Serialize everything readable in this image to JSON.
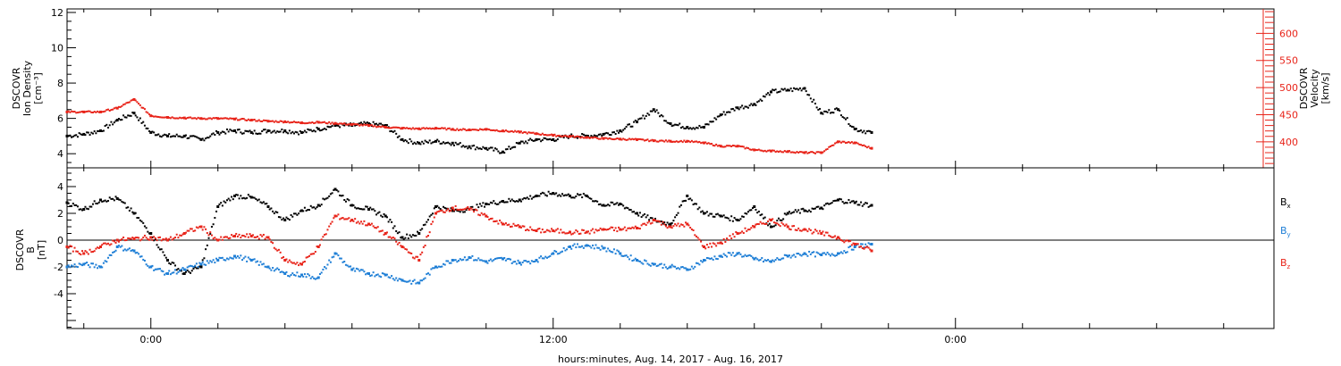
{
  "xaxis": {
    "label": "hours:minutes, Aug. 14, 2017 - Aug. 16, 2017",
    "ticks": [
      {
        "hour": 0,
        "label": "0:00"
      },
      {
        "hour": 12,
        "label": "12:00"
      },
      {
        "hour": 24,
        "label": "0:00"
      }
    ],
    "range_hours": [
      -2.5,
      33.5
    ]
  },
  "colors": {
    "black": "#000000",
    "red": "#e8241a",
    "blue": "#1f7fd6"
  },
  "chart_data": [
    {
      "type": "scatter",
      "xlabel": "",
      "ylabel": [
        "DSCOVR",
        "Ion Density",
        "[cm⁻³]"
      ],
      "ylim": [
        3.2,
        12.2
      ],
      "yticks": [
        4,
        6,
        8,
        10,
        12
      ],
      "y2label": [
        "DSCOVR",
        "Velocity",
        "[km/s]"
      ],
      "y2lim": [
        352,
        645
      ],
      "y2ticks": [
        400,
        450,
        500,
        550,
        600
      ],
      "grid": false,
      "series": [
        {
          "axis": "left",
          "color": "black",
          "x": [
            -2.5,
            -2,
            -1.5,
            -1,
            -0.5,
            0,
            0.5,
            1,
            1.5,
            2,
            2.5,
            3,
            3.5,
            4,
            4.5,
            5,
            5.5,
            6,
            6.5,
            7,
            7.5,
            8,
            8.5,
            9,
            9.5,
            10,
            10.5,
            11,
            11.5,
            12,
            12.5,
            13,
            13.5,
            14,
            14.5,
            15,
            15.5,
            16,
            16.5,
            17,
            17.5,
            18,
            18.5,
            19,
            19.5,
            20,
            20.5,
            21,
            21.5
          ],
          "y": [
            5.0,
            5.1,
            5.3,
            5.9,
            6.3,
            5.2,
            5.0,
            5.0,
            4.8,
            5.2,
            5.3,
            5.2,
            5.3,
            5.3,
            5.2,
            5.4,
            5.6,
            5.6,
            5.7,
            5.6,
            4.8,
            4.6,
            4.7,
            4.6,
            4.4,
            4.3,
            4.1,
            4.6,
            4.8,
            4.8,
            5.0,
            5.0,
            5.1,
            5.3,
            5.8,
            6.5,
            5.7,
            5.5,
            5.5,
            6.2,
            6.6,
            6.8,
            7.5,
            7.6,
            7.7,
            6.3,
            6.5,
            5.4,
            5.2
          ]
        },
        {
          "axis": "right",
          "color": "red",
          "x": [
            -2.5,
            -2,
            -1.5,
            -1,
            -0.5,
            0,
            0.5,
            1,
            1.5,
            2,
            2.5,
            3,
            3.5,
            4,
            4.5,
            5,
            5.5,
            6,
            6.5,
            7,
            7.5,
            8,
            8.5,
            9,
            9.5,
            10,
            10.5,
            11,
            11.5,
            12,
            12.5,
            13,
            13.5,
            14,
            14.5,
            15,
            15.5,
            16,
            16.5,
            17,
            17.5,
            18,
            18.5,
            19,
            19.5,
            20,
            20.5,
            21,
            21.5
          ],
          "y": [
            455,
            455,
            455,
            462,
            478,
            448,
            445,
            444,
            443,
            443,
            442,
            440,
            438,
            437,
            435,
            436,
            434,
            432,
            430,
            427,
            425,
            424,
            425,
            423,
            422,
            423,
            420,
            418,
            415,
            412,
            410,
            408,
            406,
            405,
            404,
            402,
            401,
            401,
            398,
            392,
            392,
            385,
            383,
            382,
            380,
            380,
            400,
            398,
            388
          ]
        }
      ]
    },
    {
      "type": "scatter",
      "ylabel": [
        "DSCOVR",
        "B",
        "[nT]"
      ],
      "ylim": [
        -6.6,
        5.4
      ],
      "yticks": [
        -4,
        -2,
        0,
        2,
        4
      ],
      "zero_line": true,
      "legend_position": "right",
      "series": [
        {
          "name": "Bx",
          "name_base": "B",
          "name_sub": "x",
          "color": "black",
          "x": [
            -2.5,
            -2,
            -1.5,
            -1,
            -0.5,
            0,
            0.5,
            1,
            1.5,
            2,
            2.5,
            3,
            3.5,
            4,
            4.5,
            5,
            5.5,
            6,
            6.5,
            7,
            7.5,
            8,
            8.5,
            9,
            9.5,
            10,
            10.5,
            11,
            11.5,
            12,
            12.5,
            13,
            13.5,
            14,
            14.5,
            15,
            15.5,
            16,
            16.5,
            17,
            17.5,
            18,
            18.5,
            19,
            19.5,
            20,
            20.5,
            21,
            21.5
          ],
          "y": [
            2.8,
            2.3,
            3.0,
            3.1,
            2.0,
            0.5,
            -1.5,
            -2.5,
            -2.0,
            2.5,
            3.3,
            3.2,
            2.5,
            1.5,
            2.2,
            2.6,
            3.8,
            2.6,
            2.3,
            1.8,
            0.2,
            0.5,
            2.5,
            2.2,
            2.3,
            2.7,
            2.9,
            3.0,
            3.3,
            3.5,
            3.3,
            3.3,
            2.6,
            2.7,
            2.0,
            1.5,
            1.2,
            3.3,
            2.0,
            1.8,
            1.5,
            2.5,
            1.0,
            2.0,
            2.2,
            2.4,
            3.0,
            2.8,
            2.6
          ]
        },
        {
          "name": "By",
          "name_base": "B",
          "name_sub": "y",
          "color": "blue",
          "x": [
            -2.5,
            -2,
            -1.5,
            -1,
            -0.5,
            0,
            0.5,
            1,
            1.5,
            2,
            2.5,
            3,
            3.5,
            4,
            4.5,
            5,
            5.5,
            6,
            6.5,
            7,
            7.5,
            8,
            8.5,
            9,
            9.5,
            10,
            10.5,
            11,
            11.5,
            12,
            12.5,
            13,
            13.5,
            14,
            14.5,
            15,
            15.5,
            16,
            16.5,
            17,
            17.5,
            18,
            18.5,
            19,
            19.5,
            20,
            20.5,
            21,
            21.5
          ],
          "y": [
            -2.0,
            -1.8,
            -2.0,
            -0.5,
            -0.8,
            -2.0,
            -2.5,
            -2.2,
            -1.8,
            -1.5,
            -1.2,
            -1.5,
            -2.0,
            -2.5,
            -2.6,
            -2.8,
            -1.0,
            -2.2,
            -2.5,
            -2.6,
            -3.0,
            -3.2,
            -2.0,
            -1.5,
            -1.3,
            -1.6,
            -1.4,
            -1.7,
            -1.5,
            -1.0,
            -0.5,
            -0.4,
            -0.6,
            -1.0,
            -1.5,
            -1.8,
            -2.0,
            -2.2,
            -1.5,
            -1.2,
            -1.0,
            -1.4,
            -1.6,
            -1.2,
            -1.0,
            -1.1,
            -1.0,
            -0.5,
            -0.3
          ]
        },
        {
          "name": "Bz",
          "name_base": "B",
          "name_sub": "z",
          "color": "red",
          "x": [
            -2.5,
            -2,
            -1.5,
            -1,
            -0.5,
            0,
            0.5,
            1,
            1.5,
            2,
            2.5,
            3,
            3.5,
            4,
            4.5,
            5,
            5.5,
            6,
            6.5,
            7,
            7.5,
            8,
            8.5,
            9,
            9.5,
            10,
            10.5,
            11,
            11.5,
            12,
            12.5,
            13,
            13.5,
            14,
            14.5,
            15,
            15.5,
            16,
            16.5,
            17,
            17.5,
            18,
            18.5,
            19,
            19.5,
            20,
            20.5,
            21,
            21.5
          ],
          "y": [
            -0.5,
            -1.0,
            -0.5,
            0.0,
            0.1,
            0.2,
            0.0,
            0.5,
            1.0,
            0.0,
            0.3,
            0.3,
            0.2,
            -1.5,
            -1.8,
            -0.5,
            1.8,
            1.5,
            1.2,
            0.5,
            -0.5,
            -1.5,
            2.0,
            2.4,
            2.3,
            1.8,
            1.2,
            1.0,
            0.7,
            0.7,
            0.6,
            0.6,
            0.8,
            0.8,
            0.9,
            1.5,
            1.0,
            1.2,
            -0.5,
            -0.2,
            0.5,
            1.0,
            1.5,
            1.0,
            0.8,
            0.5,
            0.2,
            -0.3,
            -0.8
          ]
        }
      ]
    }
  ]
}
